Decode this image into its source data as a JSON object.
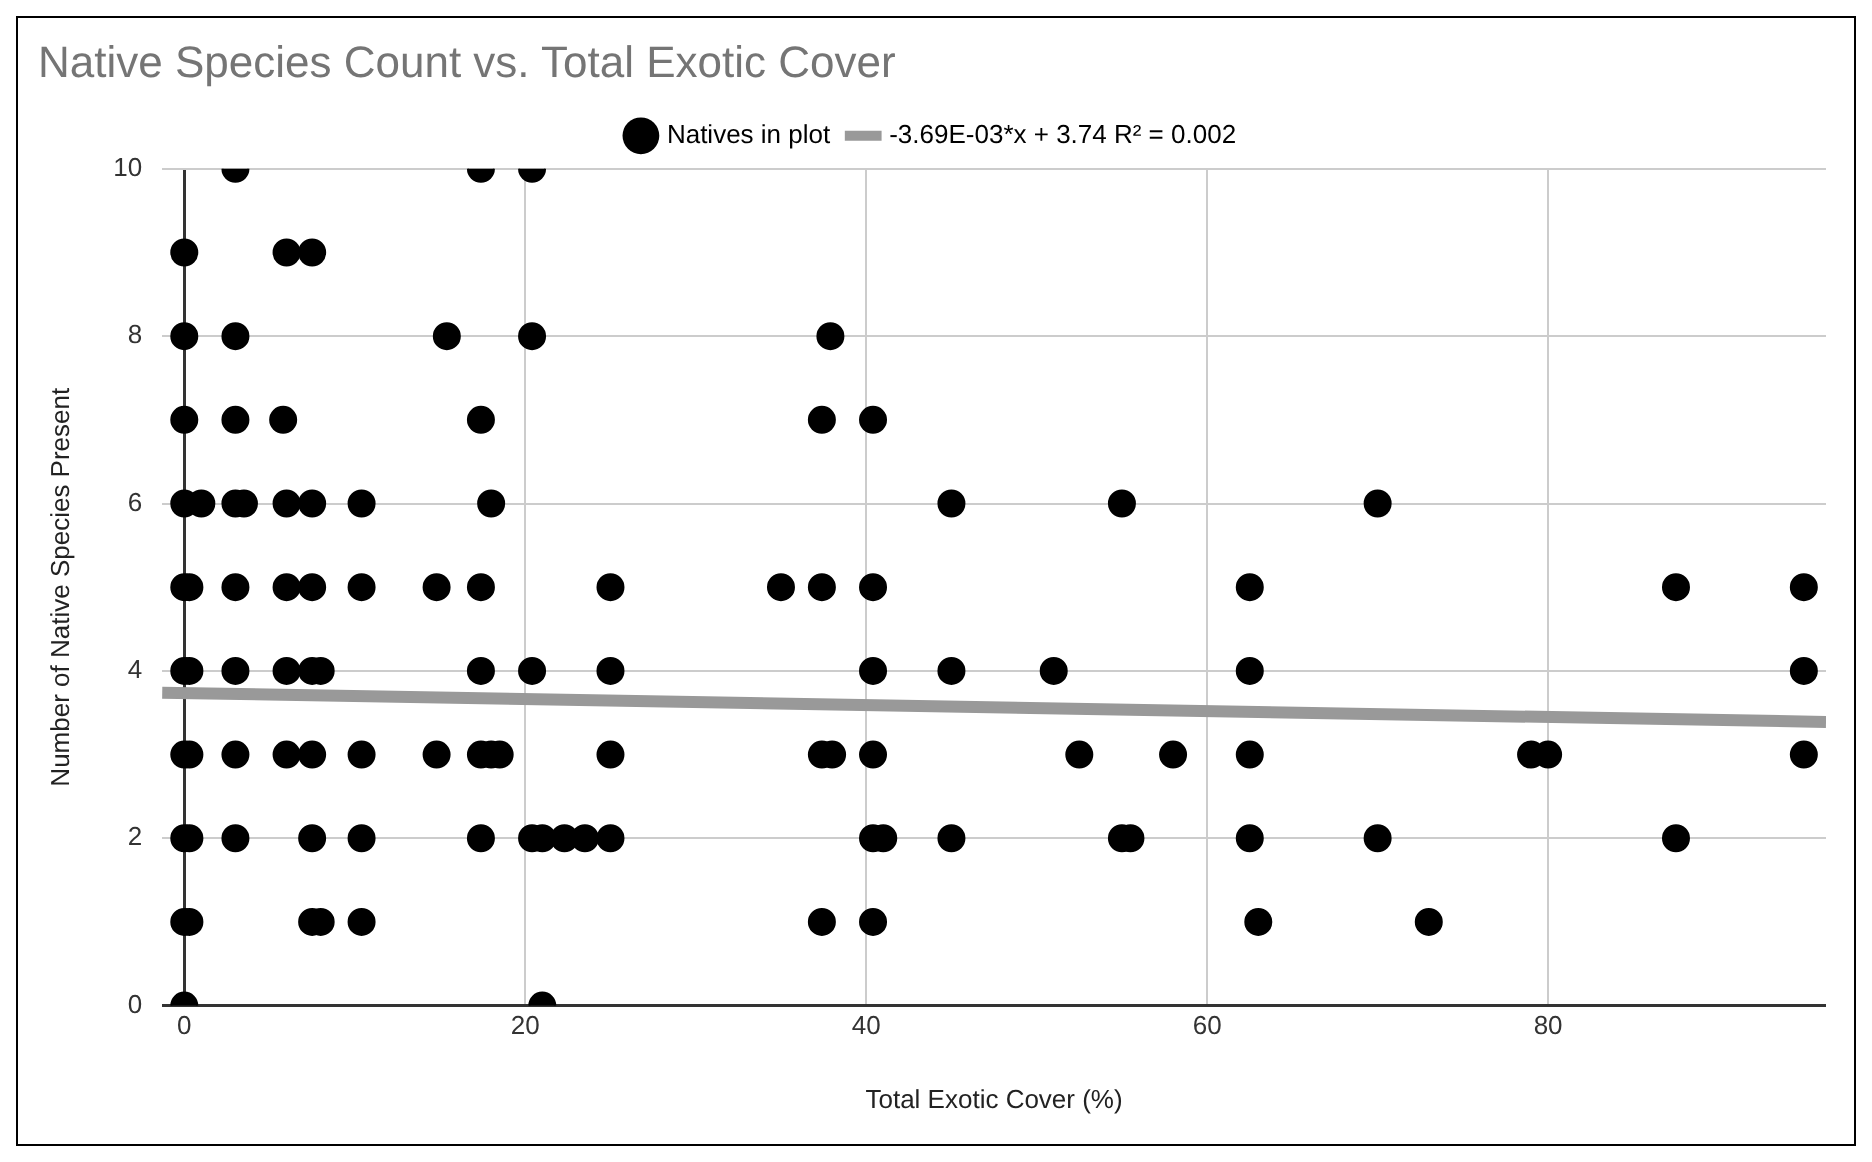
{
  "chart_data": {
    "type": "scatter",
    "title": "Native Species Count vs. Total Exotic Cover",
    "xlabel": "Total Exotic Cover (%)",
    "ylabel": "Number of Native Species Present",
    "xlim": [
      -1.3,
      96.3
    ],
    "xticks": [
      0,
      20,
      40,
      60,
      80
    ],
    "ylim": [
      0,
      10
    ],
    "yticks": [
      0,
      2,
      4,
      6,
      8,
      10
    ],
    "grid": true,
    "legend": "top",
    "marker": "circle",
    "series": [
      {
        "name": "Natives in plot",
        "color": "#000000",
        "type": "scatter",
        "x": [
          3,
          17.4,
          20.4,
          0,
          6,
          7.5,
          0,
          3,
          15.4,
          20.4,
          37.9,
          0,
          3,
          5.8,
          17.4,
          37.4,
          40.4,
          0,
          1,
          3,
          3.5,
          6,
          7.5,
          10.4,
          18,
          45,
          55,
          70,
          0,
          0.3,
          3,
          6,
          7.5,
          10.4,
          14.8,
          17.4,
          25,
          35,
          37.4,
          40.4,
          62.5,
          87.5,
          95,
          0,
          0.3,
          3,
          6,
          7.5,
          8,
          17.4,
          20.4,
          25,
          40.4,
          45,
          51,
          62.5,
          95,
          0,
          0.3,
          3,
          6,
          7.5,
          10.4,
          14.8,
          17.4,
          18,
          18.5,
          25,
          37.4,
          38,
          40.4,
          52.5,
          58,
          62.5,
          79,
          80,
          95,
          0,
          0.3,
          3,
          7.5,
          10.4,
          17.4,
          20.4,
          21,
          22.3,
          23.5,
          25,
          40.4,
          41,
          45,
          55,
          55.5,
          62.5,
          70,
          87.5,
          0,
          0.3,
          7.5,
          8,
          10.4,
          37.4,
          40.4,
          63,
          73,
          0,
          21
        ],
        "values": [
          10,
          10,
          10,
          9,
          9,
          9,
          8,
          8,
          8,
          8,
          8,
          7,
          7,
          7,
          7,
          7,
          7,
          6,
          6,
          6,
          6,
          6,
          6,
          6,
          6,
          6,
          6,
          6,
          5,
          5,
          5,
          5,
          5,
          5,
          5,
          5,
          5,
          5,
          5,
          5,
          5,
          5,
          5,
          4,
          4,
          4,
          4,
          4,
          4,
          4,
          4,
          4,
          4,
          4,
          4,
          4,
          4,
          3,
          3,
          3,
          3,
          3,
          3,
          3,
          3,
          3,
          3,
          3,
          3,
          3,
          3,
          3,
          3,
          3,
          3,
          3,
          3,
          2,
          2,
          2,
          2,
          2,
          2,
          2,
          2,
          2,
          2,
          2,
          2,
          2,
          2,
          2,
          2,
          2,
          2,
          2,
          1,
          1,
          1,
          1,
          1,
          1,
          1,
          1,
          1,
          0,
          0
        ]
      },
      {
        "name": "-3.69E-03*x + 3.74 R² = 0.002",
        "color": "#999999",
        "type": "line",
        "marker": "none",
        "x": [
          -1.3,
          96.3
        ],
        "values": [
          3.74,
          3.39
        ]
      }
    ]
  }
}
